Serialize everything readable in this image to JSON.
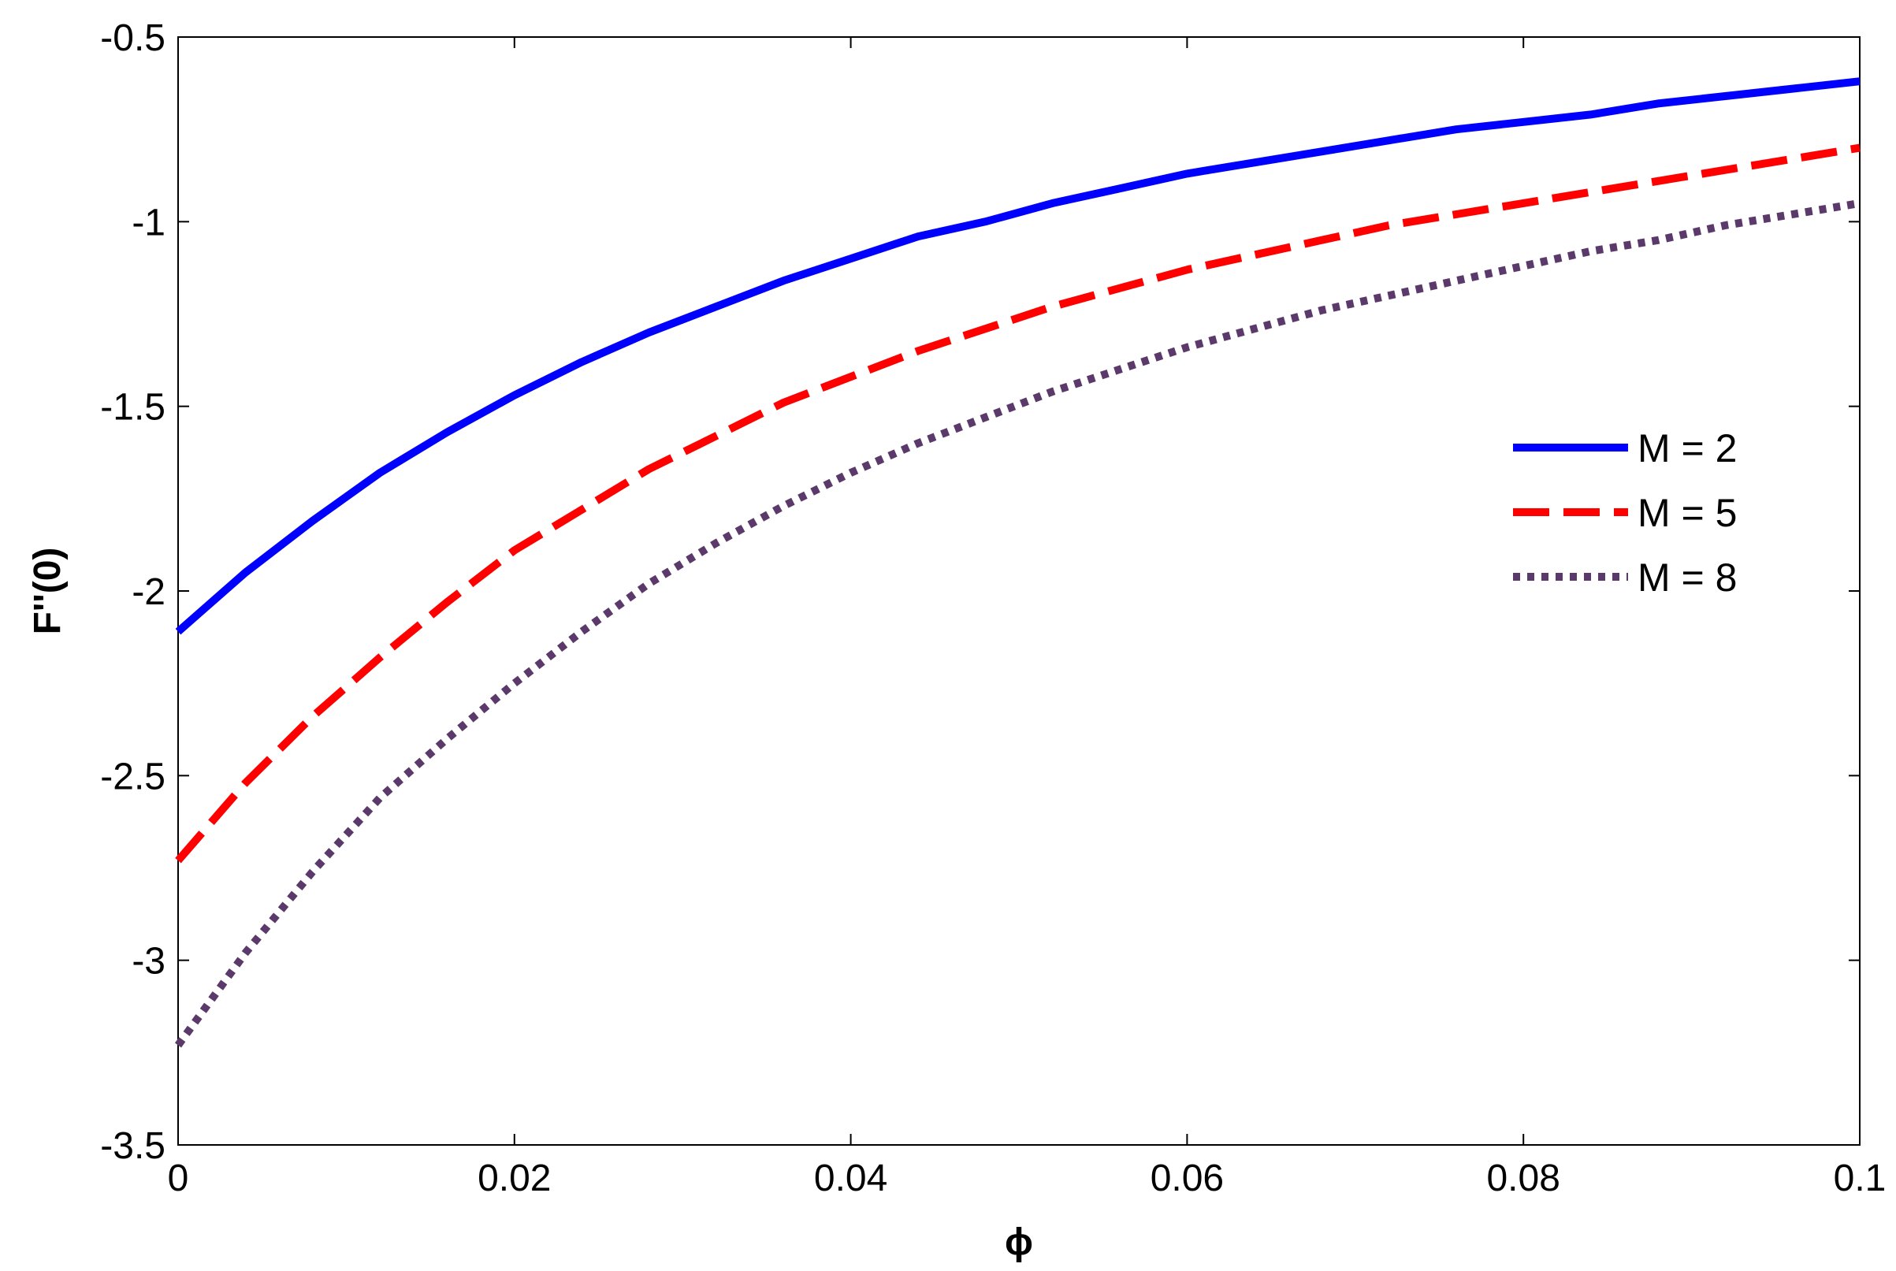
{
  "chart_data": {
    "type": "line",
    "title": "",
    "xlabel": "ϕ",
    "ylabel": "F''(0)",
    "xlim": [
      0,
      0.1
    ],
    "ylim": [
      -3.5,
      -0.5
    ],
    "xticks": [
      0,
      0.02,
      0.04,
      0.06,
      0.08,
      0.1
    ],
    "xtick_labels": [
      "0",
      "0.02",
      "0.04",
      "0.06",
      "0.08",
      "0.1"
    ],
    "yticks": [
      -0.5,
      -1,
      -1.5,
      -2,
      -2.5,
      -3,
      -3.5
    ],
    "ytick_labels": [
      "-0.5",
      "-1",
      "-1.5",
      "-2",
      "-2.5",
      "-3",
      "-3.5"
    ],
    "grid": false,
    "legend_position": "right",
    "x": [
      0,
      0.004,
      0.008,
      0.012,
      0.016,
      0.02,
      0.024,
      0.028,
      0.032,
      0.036,
      0.04,
      0.044,
      0.048,
      0.052,
      0.056,
      0.06,
      0.064,
      0.068,
      0.072,
      0.076,
      0.08,
      0.084,
      0.088,
      0.092,
      0.096,
      0.1
    ],
    "series": [
      {
        "name": "M = 2",
        "color": "#0000ff",
        "style": "solid",
        "values": [
          -2.11,
          -1.95,
          -1.81,
          -1.68,
          -1.57,
          -1.47,
          -1.38,
          -1.3,
          -1.23,
          -1.16,
          -1.1,
          -1.04,
          -1.0,
          -0.95,
          -0.91,
          -0.87,
          -0.84,
          -0.81,
          -0.78,
          -0.75,
          -0.73,
          -0.71,
          -0.68,
          -0.66,
          -0.64,
          -0.62
        ]
      },
      {
        "name": "M = 5",
        "color": "#ff0000",
        "style": "dashed",
        "values": [
          -2.73,
          -2.52,
          -2.34,
          -2.18,
          -2.03,
          -1.89,
          -1.78,
          -1.67,
          -1.58,
          -1.49,
          -1.42,
          -1.35,
          -1.29,
          -1.23,
          -1.18,
          -1.13,
          -1.09,
          -1.05,
          -1.01,
          -0.98,
          -0.95,
          -0.92,
          -0.89,
          -0.86,
          -0.83,
          -0.8
        ]
      },
      {
        "name": "M = 8",
        "color": "#5b3a6b",
        "style": "dotted",
        "values": [
          -3.23,
          -2.98,
          -2.76,
          -2.56,
          -2.4,
          -2.25,
          -2.11,
          -1.98,
          -1.87,
          -1.77,
          -1.68,
          -1.6,
          -1.53,
          -1.46,
          -1.4,
          -1.34,
          -1.29,
          -1.24,
          -1.2,
          -1.16,
          -1.12,
          -1.08,
          -1.05,
          -1.01,
          -0.98,
          -0.95
        ]
      }
    ]
  }
}
